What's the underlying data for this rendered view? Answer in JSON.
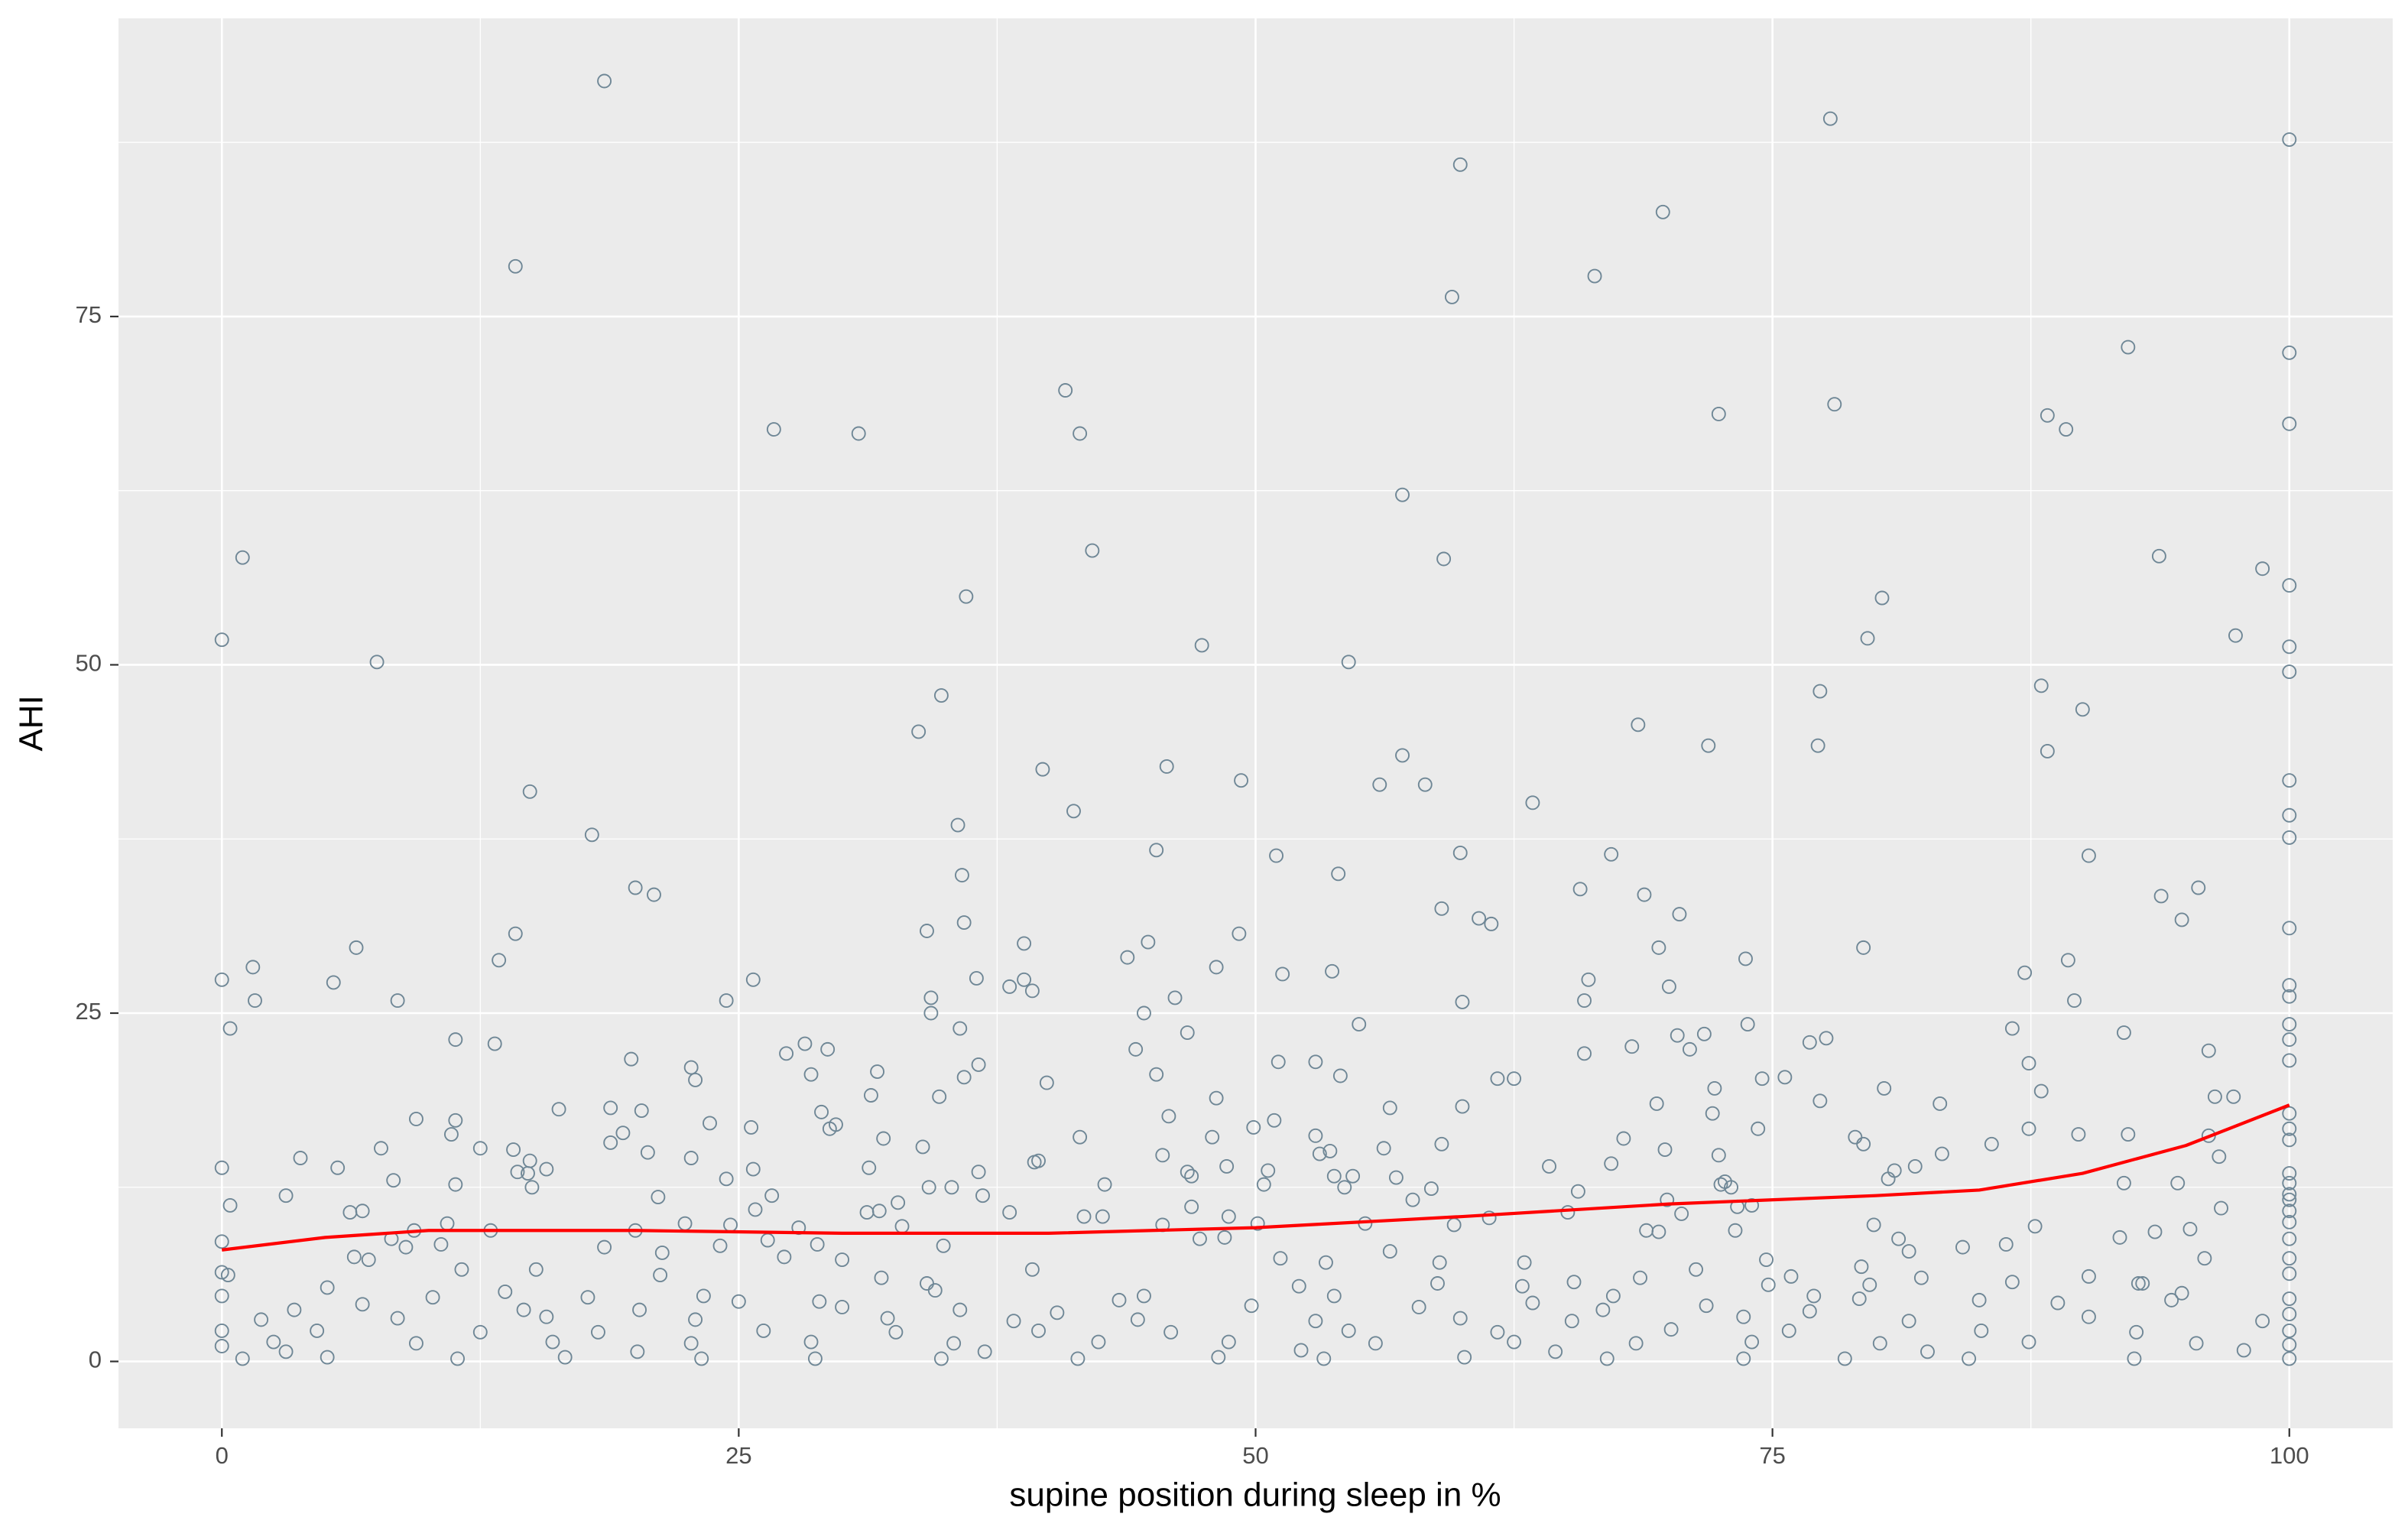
{
  "chart_data": {
    "type": "scatter",
    "x_label": "supine position during sleep in %",
    "y_label": "AHI",
    "xlim": [
      -5,
      105
    ],
    "ylim": [
      -4.8,
      96.4
    ],
    "xticks": [
      0,
      25,
      50,
      75,
      100
    ],
    "yticks": [
      0,
      25,
      50,
      75
    ],
    "x_minor_ticks": [
      12.5,
      37.5,
      62.5,
      87.5
    ],
    "y_minor_ticks": [
      12.5,
      37.5,
      62.5,
      87.5
    ],
    "grid": true,
    "series": [
      {
        "type": "scatter",
        "color": "#6f8796",
        "x": [
          18.5,
          14.2,
          77.8,
          100,
          59.9,
          69.7,
          59.5,
          66.4,
          92.2,
          100,
          40.8,
          26.7,
          30.8,
          41.5,
          72.4,
          78.0,
          88.3,
          89.2,
          100,
          57.1,
          1.0,
          42.1,
          59.1,
          93.7,
          98.7,
          100,
          36.0,
          80.3,
          0,
          79.6,
          97.4,
          47.4,
          7.5,
          54.5,
          100,
          100,
          88.0,
          34.8,
          77.3,
          90.0,
          33.7,
          68.5,
          77.2,
          71.9,
          57.1,
          88.3,
          45.7,
          39.7,
          49.3,
          56.0,
          58.2,
          100,
          14.9,
          41.2,
          63.4,
          100,
          17.9,
          35.6,
          45.2,
          51.0,
          59.9,
          67.2,
          90.3,
          100,
          20.9,
          20.0,
          35.8,
          54.0,
          65.7,
          68.8,
          93.8,
          95.6,
          70.5,
          59.0,
          60.8,
          35.9,
          61.4,
          94.8,
          100,
          14.2,
          34.1,
          44.8,
          49.2,
          38.8,
          6.5,
          79.4,
          69.5,
          13.4,
          43.8,
          73.7,
          89.3,
          1.5,
          48.1,
          0,
          5.4,
          25.7,
          36.5,
          87.2,
          38.8,
          51.3,
          53.7,
          66.1,
          70.0,
          100,
          38.1,
          39.2,
          60.0,
          1.6,
          8.5,
          24.4,
          34.3,
          65.9,
          89.6,
          100,
          34.3,
          44.6,
          46.1,
          0.4,
          35.7,
          46.7,
          55.0,
          73.8,
          86.6,
          100,
          11.3,
          13.2,
          28.2,
          70.4,
          76.8,
          77.6,
          92.0,
          71.7,
          100,
          27.3,
          29.3,
          44.2,
          65.9,
          68.2,
          71.0,
          96.1,
          19.8,
          36.6,
          51.1,
          52.9,
          87.4,
          100,
          22.7,
          31.7,
          28.5,
          45.2,
          61.7,
          62.5,
          75.6,
          74.5,
          54.1,
          22.9,
          35.9,
          39.9,
          80.4,
          72.2,
          88.0,
          96.4,
          34.7,
          31.4,
          77.3,
          48.1,
          69.4,
          83.1,
          16.3,
          18.8,
          20.3,
          60.0,
          56.5,
          29.0,
          97.3,
          45.8,
          72.1,
          9.4,
          11.3,
          50.9,
          100,
          29.7,
          25.6,
          23.6,
          29.4,
          49.9,
          74.3,
          87.4,
          100,
          11.1,
          19.4,
          79.0,
          89.8,
          92.2,
          96.1,
          32.0,
          41.5,
          47.9,
          52.9,
          67.8,
          79.4,
          85.6,
          100,
          18.8,
          33.9,
          59.0,
          56.2,
          7.7,
          12.5,
          14.1,
          20.6,
          53.1,
          69.8,
          83.2,
          96.6,
          45.5,
          72.4,
          53.6,
          14.9,
          3.8,
          22.7,
          39.5,
          64.2,
          67.2,
          81.9,
          0,
          5.6,
          25.7,
          31.3,
          48.6,
          15.7,
          80.9,
          50.6,
          14.3,
          39.3,
          46.7,
          100,
          14.8,
          53.8,
          56.8,
          80.6,
          8.3,
          24.4,
          36.6,
          46.9,
          54.7,
          72.7,
          94.6,
          11.3,
          50.4,
          42.7,
          65.6,
          72.5,
          92.0,
          100,
          15.0,
          34.2,
          35.3,
          58.5,
          73.0,
          54.3,
          100,
          3.1,
          21.1,
          26.6,
          36.8,
          57.6,
          69.9,
          100,
          0.4,
          32.7,
          46.9,
          74.0,
          96.7,
          25.8,
          31.8,
          38.1,
          70.6,
          73.3,
          6.2,
          6.8,
          42.6,
          48.7,
          65.1,
          100,
          31.2,
          41.7,
          59.6,
          61.3,
          10.9,
          22.4,
          24.6,
          50.1,
          55.3,
          73.2,
          79.9,
          87.7,
          100,
          9.3,
          13.0,
          20.0,
          27.9,
          32.9,
          45.5,
          48.5,
          68.9,
          69.5,
          93.5,
          95.2,
          8.2,
          10.6,
          8.9,
          24.1,
          26.4,
          28.8,
          34.9,
          81.1,
          84.2,
          86.3,
          91.8,
          100,
          0,
          47.3,
          18.5,
          21.3,
          56.5,
          81.6,
          74.7,
          100,
          6.4,
          7.1,
          27.2,
          30.0,
          51.2,
          53.4,
          95.9,
          71.3,
          15.2,
          39.2,
          58.9,
          63.0,
          79.3,
          11.6,
          0,
          0.3,
          21.2,
          31.9,
          68.6,
          75.9,
          90.3,
          100,
          79.7,
          92.9,
          74.8,
          86.6,
          5.1,
          34.1,
          52.1,
          58.8,
          62.9,
          65.4,
          82.2,
          92.7,
          13.7,
          23.3,
          34.5,
          44.6,
          53.8,
          67.3,
          77.0,
          94.8,
          0,
          10.2,
          17.7,
          25.0,
          28.9,
          43.4,
          63.4,
          79.2,
          85.0,
          88.8,
          94.3,
          100,
          3.5,
          6.8,
          14.6,
          20.2,
          30.0,
          35.7,
          40.4,
          49.8,
          57.9,
          66.8,
          71.8,
          76.8,
          100,
          1.9,
          8.5,
          15.7,
          22.9,
          32.2,
          38.3,
          44.3,
          52.9,
          59.9,
          65.3,
          73.6,
          81.6,
          90.3,
          98.7,
          0,
          4.6,
          12.5,
          18.2,
          26.2,
          32.6,
          39.5,
          45.9,
          54.5,
          61.7,
          70.1,
          75.8,
          85.1,
          92.6,
          100,
          2.5,
          9.4,
          16.0,
          22.7,
          28.5,
          35.4,
          42.4,
          48.7,
          55.8,
          62.5,
          68.4,
          74.0,
          80.2,
          87.4,
          95.5,
          0,
          100,
          1.0,
          5.1,
          11.4,
          16.6,
          23.2,
          28.7,
          34.8,
          41.4,
          48.2,
          53.3,
          60.1,
          67.0,
          73.6,
          78.5,
          84.5,
          92.5,
          100,
          3.1,
          20.1,
          36.9,
          52.2,
          64.5,
          82.5,
          97.8
        ],
        "values": [
          91.9,
          78.6,
          89.2,
          87.7,
          85.9,
          82.5,
          76.4,
          77.9,
          72.8,
          72.4,
          69.7,
          66.9,
          66.6,
          66.6,
          68.0,
          68.7,
          67.9,
          66.9,
          67.3,
          62.2,
          57.7,
          58.2,
          57.6,
          57.8,
          56.9,
          55.7,
          54.9,
          54.8,
          51.8,
          51.9,
          52.1,
          51.4,
          50.2,
          50.2,
          51.3,
          49.5,
          48.5,
          47.8,
          48.1,
          46.8,
          45.2,
          45.7,
          44.2,
          44.2,
          43.5,
          43.8,
          42.7,
          42.5,
          41.7,
          41.4,
          41.4,
          41.7,
          40.9,
          39.5,
          40.1,
          39.2,
          37.8,
          38.5,
          36.7,
          36.3,
          36.5,
          36.4,
          36.3,
          37.6,
          33.5,
          34.0,
          34.9,
          35.0,
          33.9,
          33.5,
          33.4,
          34.0,
          32.1,
          32.5,
          31.8,
          31.5,
          31.4,
          31.7,
          31.1,
          30.7,
          30.9,
          30.1,
          30.7,
          30.0,
          29.7,
          29.7,
          29.7,
          28.8,
          29.0,
          28.9,
          28.8,
          28.3,
          28.3,
          27.4,
          27.2,
          27.4,
          27.5,
          27.9,
          27.4,
          27.8,
          28.0,
          27.4,
          26.9,
          27.0,
          26.9,
          26.6,
          25.8,
          25.9,
          25.9,
          25.9,
          26.1,
          25.9,
          25.9,
          26.2,
          25.0,
          25.0,
          26.1,
          23.9,
          23.9,
          23.6,
          24.2,
          24.2,
          23.9,
          24.2,
          23.1,
          22.8,
          22.8,
          23.4,
          22.9,
          23.2,
          23.6,
          23.5,
          23.1,
          22.1,
          22.4,
          22.4,
          22.1,
          22.6,
          22.4,
          22.3,
          21.7,
          21.3,
          21.5,
          21.5,
          21.4,
          21.6,
          21.1,
          20.8,
          20.6,
          20.6,
          20.3,
          20.3,
          20.4,
          20.3,
          20.5,
          20.2,
          20.4,
          20.0,
          19.6,
          19.6,
          19.4,
          19.0,
          19.0,
          19.1,
          18.7,
          18.9,
          18.5,
          18.5,
          18.1,
          18.2,
          18.0,
          18.3,
          18.2,
          17.9,
          19.0,
          17.6,
          17.8,
          17.4,
          17.3,
          17.3,
          17.8,
          17.0,
          16.8,
          17.1,
          16.7,
          16.8,
          16.7,
          16.7,
          16.7,
          16.3,
          16.4,
          16.1,
          16.3,
          16.3,
          16.2,
          16.0,
          16.1,
          16.1,
          16.2,
          16.0,
          15.6,
          15.6,
          15.9,
          15.7,
          15.4,
          15.6,
          15.3,
          15.3,
          15.3,
          15.2,
          15.0,
          14.9,
          15.2,
          14.9,
          14.7,
          14.8,
          14.8,
          15.1,
          14.4,
          14.6,
          14.6,
          14.4,
          14.0,
          14.2,
          14.0,
          13.9,
          13.9,
          13.8,
          13.9,
          14.0,
          13.8,
          13.7,
          13.7,
          13.6,
          14.3,
          13.6,
          13.5,
          13.5,
          13.3,
          13.2,
          13.1,
          13.0,
          13.1,
          13.6,
          13.3,
          13.3,
          12.9,
          12.8,
          12.7,
          12.7,
          12.7,
          12.2,
          12.7,
          12.8,
          12.8,
          12.5,
          12.5,
          12.5,
          12.4,
          12.5,
          12.5,
          12.0,
          11.9,
          11.8,
          11.9,
          11.9,
          11.6,
          11.6,
          11.6,
          11.2,
          11.4,
          11.1,
          11.2,
          11.0,
          10.9,
          10.8,
          10.7,
          10.6,
          11.1,
          10.7,
          10.8,
          10.4,
          10.4,
          10.7,
          10.8,
          10.7,
          10.4,
          9.8,
          10.3,
          9.9,
          9.9,
          9.8,
          9.9,
          9.9,
          9.4,
          9.8,
          9.7,
          10.0,
          9.4,
          9.4,
          9.4,
          9.6,
          9.7,
          9.8,
          8.9,
          9.4,
          9.3,
          9.3,
          9.5,
          8.8,
          8.4,
          8.2,
          8.3,
          8.7,
          8.4,
          8.3,
          8.8,
          8.2,
          8.4,
          8.9,
          8.8,
          8.6,
          8.8,
          8.2,
          7.8,
          7.9,
          7.9,
          7.3,
          7.4,
          7.5,
          7.3,
          7.5,
          7.3,
          7.4,
          7.1,
          7.4,
          6.6,
          6.6,
          6.6,
          7.1,
          7.1,
          6.8,
          6.6,
          6.4,
          6.2,
          6.2,
          6.0,
          6.0,
          6.1,
          6.1,
          6.3,
          5.5,
          5.6,
          5.5,
          5.7,
          5.3,
          5.6,
          5.4,
          5.6,
          5.4,
          5.7,
          6.0,
          5.6,
          5.0,
          4.7,
          5.1,
          4.7,
          4.7,
          4.7,
          4.7,
          4.9,
          4.7,
          4.6,
          4.6,
          4.3,
          4.3,
          4.4,
          4.2,
          4.5,
          4.4,
          4.2,
          4.4,
          4.5,
          3.7,
          4.1,
          3.7,
          3.7,
          3.9,
          3.7,
          3.5,
          4.0,
          3.9,
          3.7,
          4.0,
          3.6,
          3.4,
          3.0,
          3.1,
          3.2,
          3.0,
          3.1,
          2.9,
          3.0,
          2.9,
          3.1,
          2.9,
          3.2,
          2.9,
          3.2,
          2.9,
          2.2,
          2.2,
          2.1,
          2.1,
          2.2,
          2.1,
          2.2,
          2.1,
          2.2,
          2.1,
          2.3,
          2.2,
          2.2,
          2.1,
          2.2,
          1.4,
          1.3,
          1.4,
          1.3,
          1.4,
          1.3,
          1.4,
          1.4,
          1.3,
          1.4,
          1.3,
          1.4,
          1.3,
          1.4,
          1.3,
          1.1,
          1.2,
          0.2,
          0.3,
          0.2,
          0.3,
          0.2,
          0.2,
          0.2,
          0.2,
          0.3,
          0.2,
          0.3,
          0.2,
          0.2,
          0.2,
          0.2,
          0.2,
          0.2,
          0.7,
          0.7,
          0.7,
          0.8,
          0.7,
          0.7,
          0.8
        ]
      },
      {
        "type": "line",
        "color": "#ff0000",
        "x": [
          0,
          5,
          10,
          20,
          30,
          40,
          50,
          60,
          70,
          80,
          85,
          90,
          95,
          100
        ],
        "values": [
          8.0,
          8.9,
          9.4,
          9.4,
          9.2,
          9.2,
          9.6,
          10.4,
          11.3,
          11.9,
          12.3,
          13.5,
          15.5,
          18.4
        ]
      }
    ]
  }
}
